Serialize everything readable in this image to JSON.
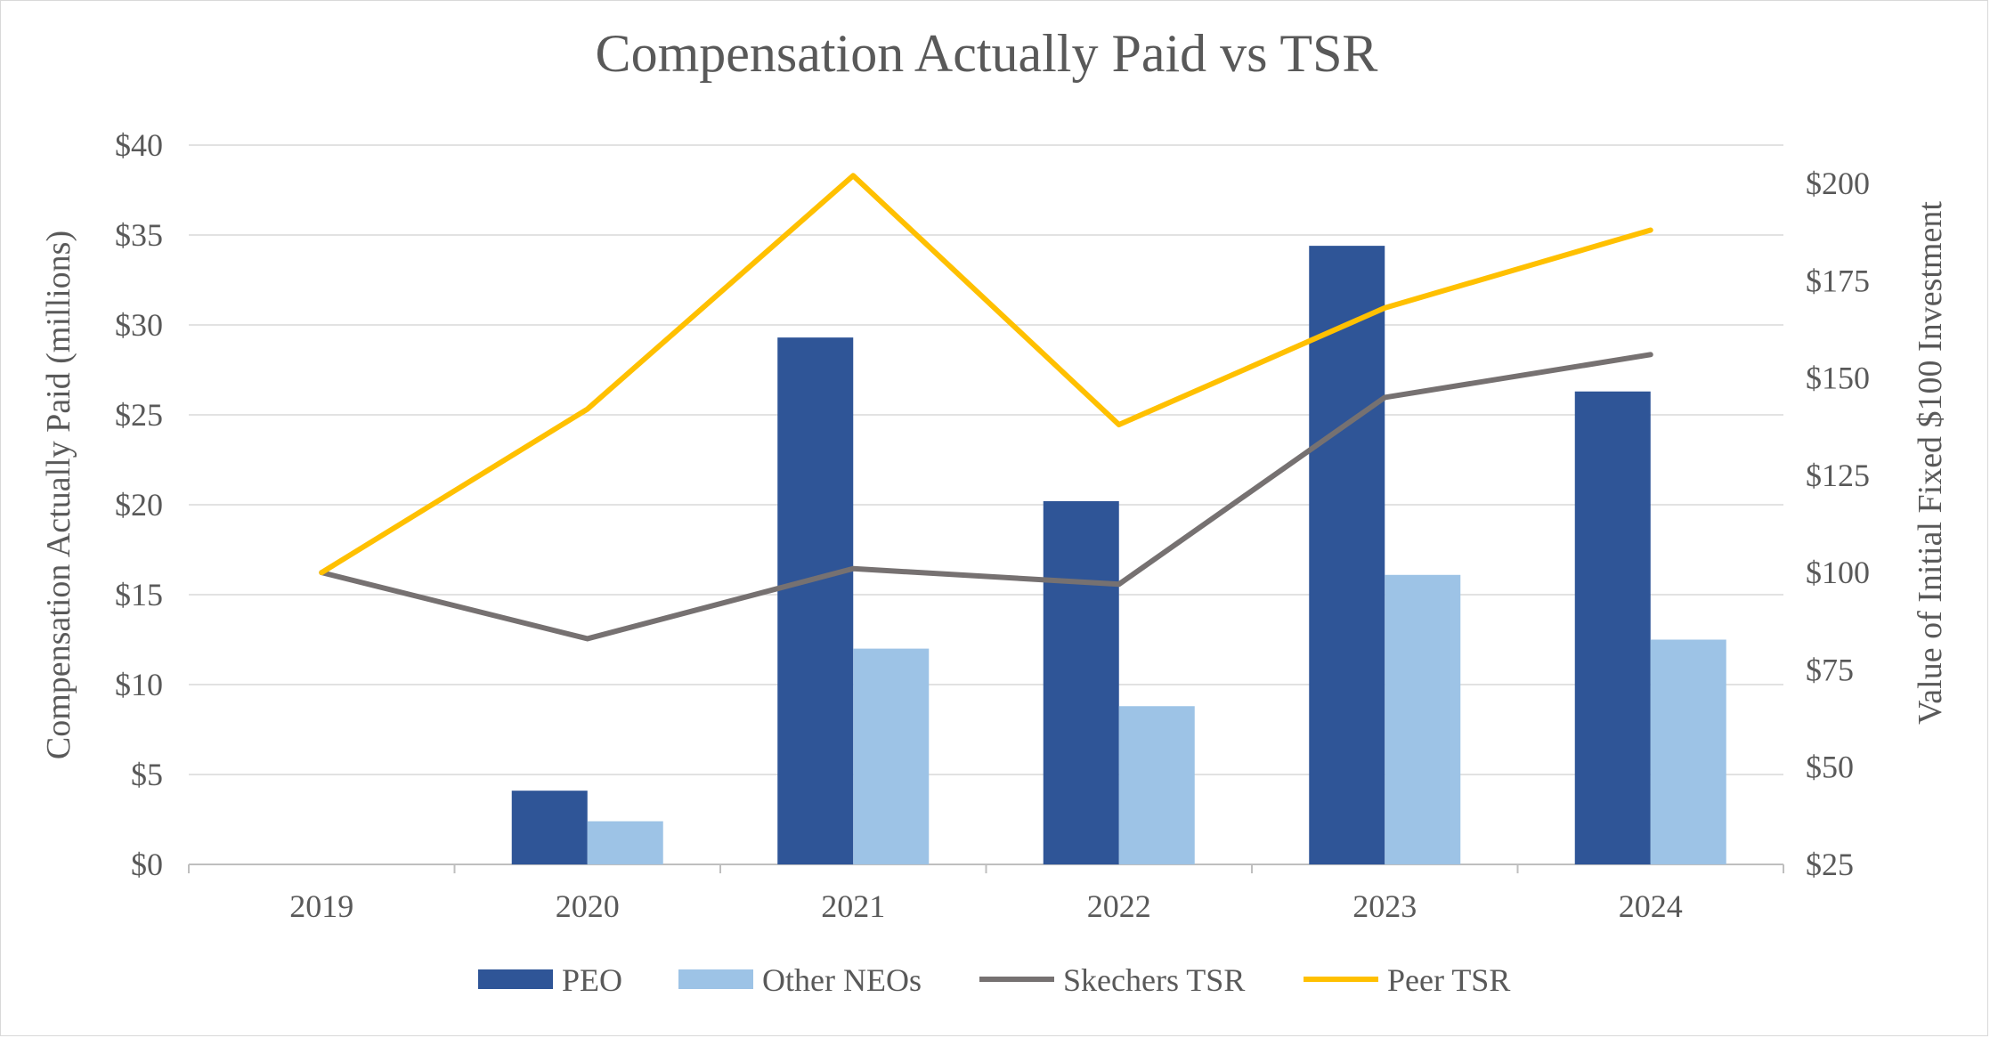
{
  "chart_data": {
    "type": "bar+line",
    "title": "Compensation Actually Paid vs TSR",
    "categories": [
      "2019",
      "2020",
      "2021",
      "2022",
      "2023",
      "2024"
    ],
    "ylabel_left": "Compensation Actually Paid (millions)",
    "ylabel_right": "Value of Initial Fixed $100 Investment",
    "ylim_left": [
      0,
      40
    ],
    "ylim_right": [
      25,
      210
    ],
    "y_ticks_left": [
      "$0",
      "$5",
      "$10",
      "$15",
      "$20",
      "$25",
      "$30",
      "$35",
      "$40"
    ],
    "y_ticks_left_values": [
      0,
      5,
      10,
      15,
      20,
      25,
      30,
      35,
      40
    ],
    "y_ticks_right": [
      "$25",
      "$50",
      "$75",
      "$100",
      "$125",
      "$150",
      "$175",
      "$200"
    ],
    "y_ticks_right_values": [
      25,
      50,
      75,
      100,
      125,
      150,
      175,
      200
    ],
    "grid": true,
    "legend_position": "bottom",
    "series": [
      {
        "name": "PEO",
        "kind": "bar",
        "axis": "left",
        "color": "#2f5597",
        "values": [
          0,
          4.1,
          29.3,
          20.2,
          34.4,
          26.3
        ]
      },
      {
        "name": "Other NEOs",
        "kind": "bar",
        "axis": "left",
        "color": "#9dc3e6",
        "values": [
          0,
          2.4,
          12.0,
          8.8,
          16.1,
          12.5
        ]
      },
      {
        "name": "Skechers TSR",
        "kind": "line",
        "axis": "right",
        "color": "#767171",
        "values": [
          100,
          83,
          101,
          97,
          145,
          156
        ]
      },
      {
        "name": "Peer TSR",
        "kind": "line",
        "axis": "right",
        "color": "#ffc000",
        "values": [
          100,
          142,
          202,
          138,
          168,
          188
        ]
      }
    ]
  }
}
